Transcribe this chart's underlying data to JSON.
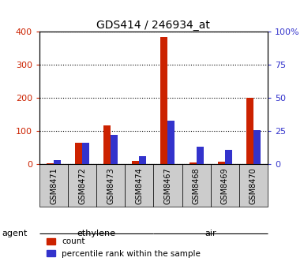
{
  "title": "GDS414 / 246934_at",
  "samples": [
    "GSM8471",
    "GSM8472",
    "GSM8473",
    "GSM8474",
    "GSM8467",
    "GSM8468",
    "GSM8469",
    "GSM8470"
  ],
  "counts": [
    3,
    65,
    118,
    10,
    383,
    5,
    8,
    200
  ],
  "percentiles": [
    3,
    16,
    22,
    6,
    33,
    13,
    11,
    26
  ],
  "groups": [
    {
      "label": "ethylene",
      "start": 0,
      "end": 4,
      "color": "#bbffbb"
    },
    {
      "label": "air",
      "start": 4,
      "end": 8,
      "color": "#44ee44"
    }
  ],
  "ylim_left": [
    0,
    400
  ],
  "ylim_right": [
    0,
    100
  ],
  "yticks_left": [
    0,
    100,
    200,
    300,
    400
  ],
  "yticks_right": [
    0,
    25,
    50,
    75,
    100
  ],
  "yticklabels_left": [
    "0",
    "100",
    "200",
    "300",
    "400"
  ],
  "yticklabels_right": [
    "0",
    "25",
    "50",
    "75",
    "100%"
  ],
  "bar_color_count": "#cc2200",
  "bar_color_pct": "#3333cc",
  "bar_width": 0.25,
  "legend_count": "count",
  "legend_pct": "percentile rank within the sample",
  "agent_label": "agent",
  "left_tick_color": "#cc2200",
  "right_tick_color": "#3333cc",
  "bg_plot": "white",
  "bg_sample_row": "#cccccc"
}
